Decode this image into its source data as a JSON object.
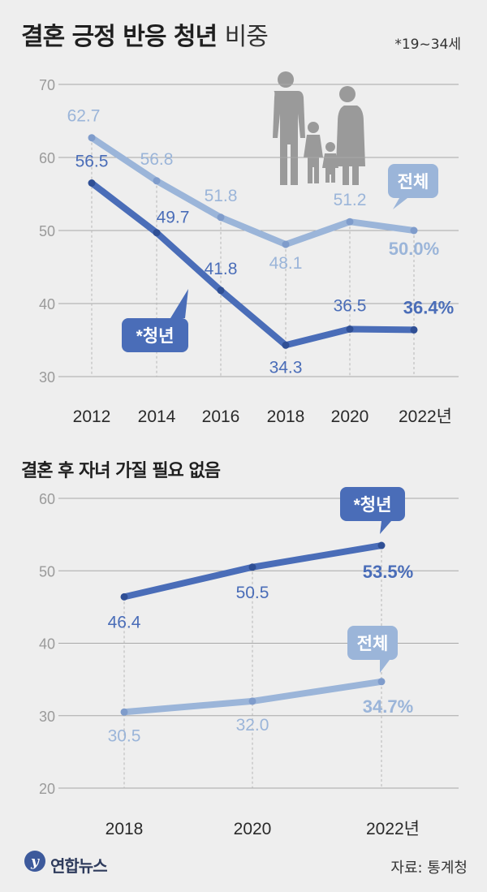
{
  "header": {
    "title_bold": "결혼 긍정 반응 청년",
    "title_light": "비중",
    "note": "*19~34세"
  },
  "chart_data": [
    {
      "type": "line",
      "title": "결혼 긍정 반응 청년 비중",
      "categories": [
        "2012",
        "2014",
        "2016",
        "2018",
        "2020",
        "2022년"
      ],
      "ylim": [
        30,
        70
      ],
      "yticks": [
        "30",
        "40",
        "50",
        "60",
        "70"
      ],
      "grid": true,
      "series": [
        {
          "name": "전체",
          "color": "#9bb5d9",
          "values": [
            62.7,
            56.8,
            51.8,
            48.1,
            51.2,
            50.0
          ],
          "labels": [
            "62.7",
            "56.8",
            "51.8",
            "48.1",
            "51.2",
            "50.0%"
          ]
        },
        {
          "name": "*청년",
          "color": "#4a6db8",
          "values": [
            56.5,
            49.7,
            41.8,
            34.3,
            36.5,
            36.4
          ],
          "labels": [
            "56.5",
            "49.7",
            "41.8",
            "34.3",
            "36.5",
            "36.4%"
          ]
        }
      ]
    },
    {
      "type": "line",
      "title": "결혼 후 자녀 가질 필요 없음",
      "categories": [
        "2018",
        "2020",
        "2022년"
      ],
      "ylim": [
        20,
        60
      ],
      "yticks": [
        "20",
        "30",
        "40",
        "50",
        "60"
      ],
      "grid": true,
      "series": [
        {
          "name": "*청년",
          "color": "#4a6db8",
          "values": [
            46.4,
            50.5,
            53.5
          ],
          "labels": [
            "46.4",
            "50.5",
            "53.5%"
          ]
        },
        {
          "name": "전체",
          "color": "#9bb5d9",
          "values": [
            30.5,
            32.0,
            34.7
          ],
          "labels": [
            "30.5",
            "32.0",
            "34.7%"
          ]
        }
      ]
    }
  ],
  "footer": {
    "logo_text": "연합뉴스",
    "source": "자료: 통계청"
  }
}
